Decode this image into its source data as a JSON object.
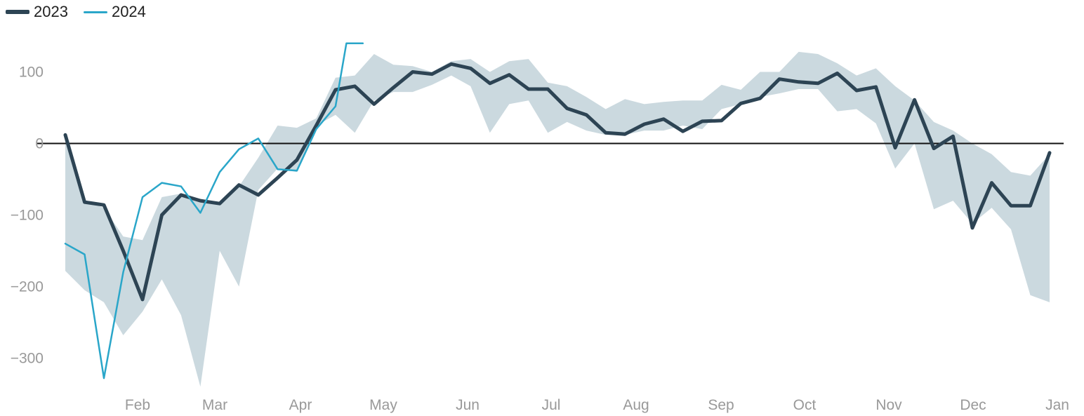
{
  "legend": [
    {
      "label": "2023",
      "color": "#2d4454"
    },
    {
      "label": "2024",
      "color": "#2aa6c9"
    }
  ],
  "chart_data": {
    "type": "line",
    "title": "",
    "xlabel": "",
    "ylabel": "",
    "x_ticks": [
      "Feb",
      "Mar",
      "Apr",
      "May",
      "Jun",
      "Jul",
      "Aug",
      "Sep",
      "Oct",
      "Nov",
      "Dec",
      "Jan"
    ],
    "y_ticks": [
      "100",
      "0",
      "−100",
      "−200",
      "−300"
    ],
    "y_tick_values": [
      100,
      0,
      -100,
      -200,
      -300
    ],
    "ylim": [
      -335,
      140
    ],
    "xlim": [
      0.5,
      52.5
    ],
    "zero_line": true,
    "grid": false,
    "legend_position": "top-left",
    "band": {
      "color": "#cbd9df",
      "x": [
        1,
        2,
        3,
        4,
        5,
        6,
        7,
        8,
        9,
        10,
        11,
        12,
        13,
        14,
        15,
        16,
        17,
        18,
        19,
        20,
        21,
        22,
        23,
        24,
        25,
        26,
        27,
        28,
        29,
        30,
        31,
        32,
        33,
        34,
        35,
        36,
        37,
        38,
        39,
        40,
        41,
        42,
        43,
        44,
        45,
        46,
        47,
        48,
        49,
        50,
        51,
        52
      ],
      "upper": [
        10,
        -80,
        -90,
        -130,
        -135,
        -75,
        -70,
        -80,
        -82,
        -60,
        -20,
        25,
        22,
        35,
        92,
        95,
        125,
        110,
        108,
        100,
        115,
        118,
        100,
        115,
        118,
        85,
        80,
        65,
        48,
        62,
        55,
        58,
        60,
        60,
        82,
        75,
        100,
        100,
        128,
        125,
        112,
        95,
        105,
        80,
        60,
        30,
        18,
        0,
        -15,
        -40,
        -45,
        -15
      ],
      "lower": [
        -178,
        -205,
        -222,
        -268,
        -235,
        -190,
        -240,
        -340,
        -150,
        -200,
        -65,
        -35,
        -40,
        25,
        40,
        15,
        60,
        72,
        72,
        82,
        95,
        80,
        15,
        55,
        60,
        15,
        30,
        18,
        12,
        12,
        18,
        18,
        25,
        20,
        48,
        55,
        65,
        70,
        76,
        76,
        45,
        48,
        28,
        -35,
        0,
        -92,
        -80,
        -112,
        -90,
        -120,
        -212,
        -222
      ]
    },
    "series": [
      {
        "name": "2023",
        "color": "#2d4454",
        "x": [
          1,
          2,
          3,
          4,
          5,
          6,
          7,
          8,
          9,
          10,
          11,
          12,
          13,
          14,
          15,
          16,
          17,
          18,
          19,
          20,
          21,
          22,
          23,
          24,
          25,
          26,
          27,
          28,
          29,
          30,
          31,
          32,
          33,
          34,
          35,
          36,
          37,
          38,
          39,
          40,
          41,
          42,
          43,
          44,
          45,
          46,
          47,
          48,
          49,
          50,
          51,
          52
        ],
        "values": [
          12,
          -82,
          -86,
          -150,
          -218,
          -100,
          -72,
          -80,
          -84,
          -58,
          -72,
          -48,
          -23,
          25,
          75,
          80,
          55,
          78,
          100,
          97,
          111,
          105,
          84,
          96,
          76,
          76,
          49,
          40,
          15,
          13,
          27,
          34,
          17,
          31,
          32,
          56,
          63,
          90,
          86,
          84,
          98,
          74,
          79,
          -6,
          61,
          -7,
          10,
          -118,
          -55,
          -87,
          -87,
          -13
        ]
      },
      {
        "name": "2024",
        "color": "#2aa6c9",
        "x": [
          1,
          2,
          3,
          4,
          5,
          6,
          7,
          8,
          9,
          10,
          11,
          12,
          13,
          14,
          15,
          16,
          17
        ],
        "values": [
          -140,
          -155,
          -328,
          -180,
          -75,
          -55,
          -60,
          -97,
          -40,
          -8,
          7,
          -36,
          -38,
          20,
          52,
          140,
          140
        ]
      }
    ]
  }
}
